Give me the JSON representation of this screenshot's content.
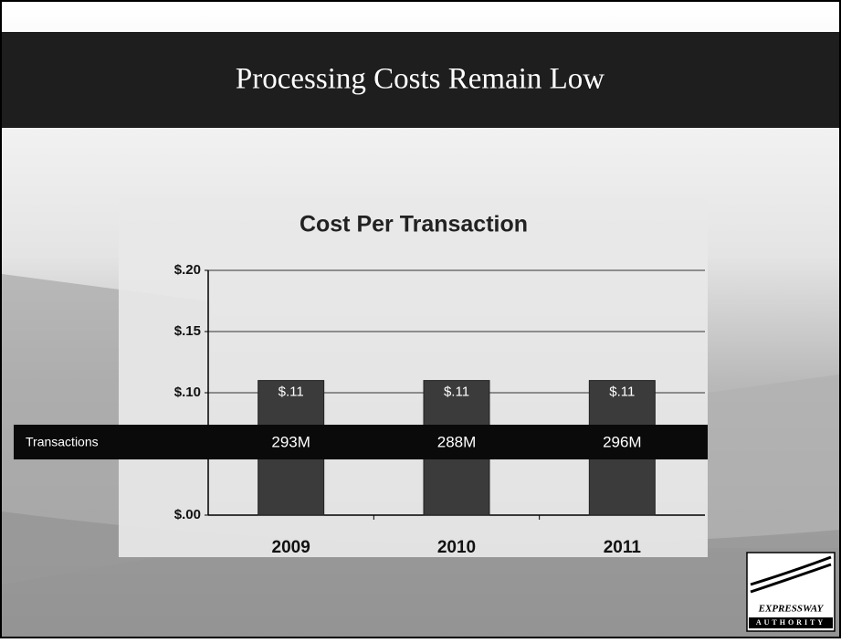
{
  "header": {
    "title": "Processing Costs Remain Low"
  },
  "chart_data": {
    "type": "bar",
    "title": "Cost Per Transaction",
    "categories": [
      "2009",
      "2010",
      "2011"
    ],
    "values": [
      0.11,
      0.11,
      0.11
    ],
    "value_labels": [
      "$.11",
      "$.11",
      "$.11"
    ],
    "color": "#3b3b3b",
    "ylim": [
      0,
      0.2
    ],
    "yticks": [
      {
        "value": 0,
        "label": "$.00"
      },
      {
        "value": 0.1,
        "label": "$.10"
      },
      {
        "value": 0.15,
        "label": "$.15"
      },
      {
        "value": 0.2,
        "label": "$.20"
      }
    ],
    "grid": true
  },
  "transactions": {
    "label": "Transactions",
    "values": [
      "293M",
      "288M",
      "296M"
    ]
  },
  "logo": {
    "line1": "EXPRESSWAY",
    "line2": "AUTHORITY"
  }
}
